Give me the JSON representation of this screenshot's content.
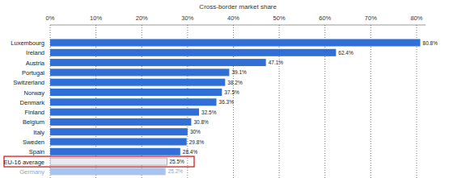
{
  "chart_data": {
    "type": "bar",
    "orientation": "horizontal",
    "title": "Cross-border market share",
    "categories": [
      "Luxembourg",
      "Ireland",
      "Austria",
      "Portugal",
      "Switzerland",
      "Norway",
      "Denmark",
      "Finland",
      "Belgium",
      "Italy",
      "Sweden",
      "Spain",
      "EU-16 average",
      "Germany"
    ],
    "values": [
      80.8,
      62.4,
      47.1,
      39.1,
      38.2,
      37.5,
      36.3,
      32.5,
      30.8,
      30,
      29.8,
      28.4,
      25.5,
      25.2
    ],
    "value_labels": [
      "80.8%",
      "62.4%",
      "47.1%",
      "39.1%",
      "38.2%",
      "37.5%",
      "36.3%",
      "32.5%",
      "30.8%",
      "30%",
      "29.8%",
      "28.4%",
      "25.5%",
      "25.2%"
    ],
    "colors": [
      "#2f6fd6",
      "#2f6fd6",
      "#2f6fd6",
      "#2f6fd6",
      "#2f6fd6",
      "#2f6fd6",
      "#2f6fd6",
      "#2f6fd6",
      "#2f6fd6",
      "#2f6fd6",
      "#2f6fd6",
      "#2f6fd6",
      "#e9ebf1",
      "#a9c3ee"
    ],
    "xlim": [
      0,
      82
    ],
    "xticks": [
      {
        "value": 0,
        "label": "0%"
      },
      {
        "value": 10,
        "label": "10%"
      },
      {
        "value": 20,
        "label": "20%"
      },
      {
        "value": 30,
        "label": "30%"
      },
      {
        "value": 40,
        "label": "40%"
      },
      {
        "value": 50,
        "label": "50%"
      },
      {
        "value": 60,
        "label": "60%"
      },
      {
        "value": 70,
        "label": "70%"
      },
      {
        "value": 80,
        "label": "80%"
      }
    ],
    "grid": true,
    "data_labels": true
  }
}
